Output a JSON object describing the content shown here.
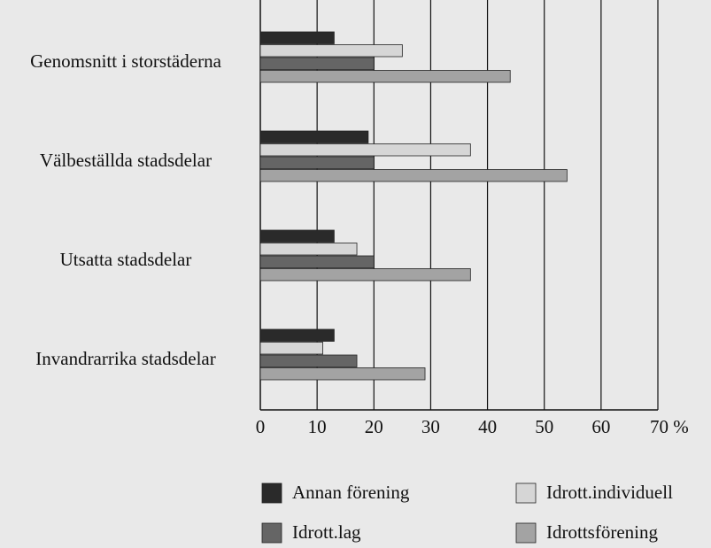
{
  "chart_data": {
    "type": "hbar",
    "categories": [
      "Genomsnitt i storstäderna",
      "Välbeställda stadsdelar",
      "Utsatta stadsdelar",
      "Invandrarrika stadsdelar"
    ],
    "series": [
      {
        "name": "Annan förening",
        "color": "#2a2a2a",
        "values": [
          13,
          19,
          13,
          13
        ]
      },
      {
        "name": "Idrott.individuell",
        "color": "#d6d6d6",
        "values": [
          25,
          37,
          17,
          11
        ]
      },
      {
        "name": "Idrott.lag",
        "color": "#656565",
        "values": [
          20,
          20,
          20,
          17
        ]
      },
      {
        "name": "Idrottsförening",
        "color": "#a3a3a3",
        "values": [
          44,
          54,
          37,
          29
        ]
      }
    ],
    "xlim": [
      0,
      70
    ],
    "xticks": [
      0,
      10,
      20,
      30,
      40,
      50,
      60,
      {
        "value": 70,
        "label": "70 %"
      }
    ],
    "grid": true
  }
}
